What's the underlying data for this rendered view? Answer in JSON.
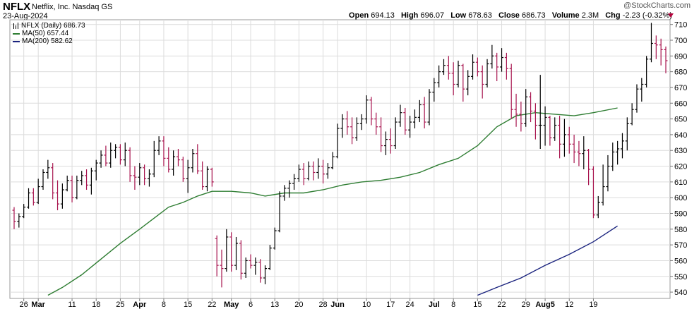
{
  "header": {
    "symbol": "NFLX",
    "company": "Netflix, Inc. Nasdaq GS",
    "date": "23-Aug-2024",
    "copyright": "@StockCharts.com",
    "quote": {
      "open_label": "Open",
      "open": "694.13",
      "high_label": "High",
      "high": "696.07",
      "low_label": "Low",
      "low": "678.63",
      "close_label": "Close",
      "close": "686.73",
      "volume_label": "Volume",
      "volume": "2.3M",
      "chg_label": "Chg",
      "chg": "-2.23 (-0.32%)"
    }
  },
  "legend": {
    "price": "NFLX (Daily) 686.73",
    "ma50": "MA(50) 657.44",
    "ma200": "MA(200) 582.62"
  },
  "colors": {
    "up": "#000000",
    "down": "#a8154f",
    "ma50": "#2e7d32",
    "ma200": "#1a237e",
    "grid": "#dcdcdc"
  },
  "chart_data": {
    "type": "line",
    "subtype": "ohlc-bars",
    "y_axis": {
      "position": "right",
      "ylim": [
        536,
        713
      ],
      "ticks": [
        540,
        550,
        560,
        570,
        580,
        590,
        600,
        610,
        620,
        630,
        640,
        650,
        660,
        670,
        680,
        690,
        700,
        710
      ]
    },
    "x_ticks": [
      {
        "label": "26",
        "bar": 2
      },
      {
        "label": "Mar",
        "bar": 5
      },
      {
        "label": "11",
        "bar": 12
      },
      {
        "label": "18",
        "bar": 17
      },
      {
        "label": "25",
        "bar": 22
      },
      {
        "label": "Apr",
        "bar": 26
      },
      {
        "label": "8",
        "bar": 31
      },
      {
        "label": "15",
        "bar": 36
      },
      {
        "label": "22",
        "bar": 41
      },
      {
        "label": "May",
        "bar": 45
      },
      {
        "label": "6",
        "bar": 49
      },
      {
        "label": "13",
        "bar": 54
      },
      {
        "label": "20",
        "bar": 59
      },
      {
        "label": "28",
        "bar": 64
      },
      {
        "label": "Jun",
        "bar": 67
      },
      {
        "label": "10",
        "bar": 73
      },
      {
        "label": "17",
        "bar": 78
      },
      {
        "label": "24",
        "bar": 82
      },
      {
        "label": "Jul",
        "bar": 87
      },
      {
        "label": "8",
        "bar": 91
      },
      {
        "label": "15",
        "bar": 96
      },
      {
        "label": "22",
        "bar": 101
      },
      {
        "label": "29",
        "bar": 106
      },
      {
        "label": "Aug5",
        "bar": 110
      },
      {
        "label": "12",
        "bar": 115
      },
      {
        "label": "19",
        "bar": 120
      }
    ],
    "bars": [
      {
        "o": 592,
        "h": 594,
        "l": 580,
        "c": 585
      },
      {
        "o": 585,
        "h": 590,
        "l": 581,
        "c": 588
      },
      {
        "o": 588,
        "h": 596,
        "l": 587,
        "c": 594
      },
      {
        "o": 594,
        "h": 606,
        "l": 593,
        "c": 603
      },
      {
        "o": 603,
        "h": 606,
        "l": 595,
        "c": 597
      },
      {
        "o": 597,
        "h": 612,
        "l": 596,
        "c": 607
      },
      {
        "o": 607,
        "h": 618,
        "l": 605,
        "c": 616
      },
      {
        "o": 616,
        "h": 624,
        "l": 612,
        "c": 619
      },
      {
        "o": 619,
        "h": 622,
        "l": 599,
        "c": 603
      },
      {
        "o": 603,
        "h": 611,
        "l": 592,
        "c": 596
      },
      {
        "o": 596,
        "h": 609,
        "l": 593,
        "c": 605
      },
      {
        "o": 605,
        "h": 614,
        "l": 604,
        "c": 611
      },
      {
        "o": 611,
        "h": 614,
        "l": 597,
        "c": 600
      },
      {
        "o": 600,
        "h": 614,
        "l": 599,
        "c": 611
      },
      {
        "o": 611,
        "h": 617,
        "l": 608,
        "c": 614
      },
      {
        "o": 614,
        "h": 618,
        "l": 605,
        "c": 608
      },
      {
        "o": 608,
        "h": 619,
        "l": 602,
        "c": 617
      },
      {
        "o": 617,
        "h": 624,
        "l": 611,
        "c": 622
      },
      {
        "o": 622,
        "h": 630,
        "l": 619,
        "c": 627
      },
      {
        "o": 627,
        "h": 633,
        "l": 620,
        "c": 622
      },
      {
        "o": 622,
        "h": 635,
        "l": 619,
        "c": 630
      },
      {
        "o": 630,
        "h": 634,
        "l": 625,
        "c": 632
      },
      {
        "o": 632,
        "h": 634,
        "l": 621,
        "c": 624
      },
      {
        "o": 624,
        "h": 635,
        "l": 620,
        "c": 630
      },
      {
        "o": 630,
        "h": 632,
        "l": 610,
        "c": 614
      },
      {
        "o": 614,
        "h": 620,
        "l": 605,
        "c": 613
      },
      {
        "o": 613,
        "h": 622,
        "l": 608,
        "c": 619
      },
      {
        "o": 619,
        "h": 621,
        "l": 608,
        "c": 612
      },
      {
        "o": 612,
        "h": 618,
        "l": 607,
        "c": 615
      },
      {
        "o": 615,
        "h": 636,
        "l": 613,
        "c": 630
      },
      {
        "o": 630,
        "h": 639,
        "l": 627,
        "c": 636
      },
      {
        "o": 636,
        "h": 639,
        "l": 620,
        "c": 625
      },
      {
        "o": 625,
        "h": 632,
        "l": 616,
        "c": 618
      },
      {
        "o": 618,
        "h": 630,
        "l": 614,
        "c": 626
      },
      {
        "o": 626,
        "h": 631,
        "l": 620,
        "c": 624
      },
      {
        "o": 624,
        "h": 626,
        "l": 610,
        "c": 612
      },
      {
        "o": 612,
        "h": 624,
        "l": 603,
        "c": 619
      },
      {
        "o": 619,
        "h": 631,
        "l": 616,
        "c": 628
      },
      {
        "o": 628,
        "h": 634,
        "l": 615,
        "c": 617
      },
      {
        "o": 617,
        "h": 623,
        "l": 605,
        "c": 607
      },
      {
        "o": 607,
        "h": 620,
        "l": 604,
        "c": 618
      },
      {
        "o": 618,
        "h": 619,
        "l": 607,
        "c": 610
      },
      {
        "o": 574,
        "h": 576,
        "l": 550,
        "c": 557
      },
      {
        "o": 557,
        "h": 567,
        "l": 543,
        "c": 555
      },
      {
        "o": 555,
        "h": 580,
        "l": 553,
        "c": 575
      },
      {
        "o": 575,
        "h": 578,
        "l": 553,
        "c": 557
      },
      {
        "o": 557,
        "h": 575,
        "l": 554,
        "c": 571
      },
      {
        "o": 571,
        "h": 573,
        "l": 548,
        "c": 552
      },
      {
        "o": 552,
        "h": 562,
        "l": 549,
        "c": 560
      },
      {
        "o": 560,
        "h": 564,
        "l": 555,
        "c": 557
      },
      {
        "o": 557,
        "h": 562,
        "l": 551,
        "c": 559
      },
      {
        "o": 559,
        "h": 561,
        "l": 546,
        "c": 549
      },
      {
        "o": 549,
        "h": 557,
        "l": 545,
        "c": 555
      },
      {
        "o": 555,
        "h": 570,
        "l": 554,
        "c": 568
      },
      {
        "o": 568,
        "h": 581,
        "l": 567,
        "c": 579
      },
      {
        "o": 579,
        "h": 604,
        "l": 578,
        "c": 601
      },
      {
        "o": 601,
        "h": 608,
        "l": 598,
        "c": 606
      },
      {
        "o": 606,
        "h": 611,
        "l": 600,
        "c": 609
      },
      {
        "o": 609,
        "h": 615,
        "l": 605,
        "c": 612
      },
      {
        "o": 612,
        "h": 621,
        "l": 610,
        "c": 618
      },
      {
        "o": 618,
        "h": 622,
        "l": 608,
        "c": 612
      },
      {
        "o": 612,
        "h": 623,
        "l": 611,
        "c": 620
      },
      {
        "o": 620,
        "h": 623,
        "l": 611,
        "c": 616
      },
      {
        "o": 616,
        "h": 625,
        "l": 612,
        "c": 620
      },
      {
        "o": 620,
        "h": 624,
        "l": 609,
        "c": 615
      },
      {
        "o": 615,
        "h": 622,
        "l": 612,
        "c": 619
      },
      {
        "o": 619,
        "h": 629,
        "l": 618,
        "c": 626
      },
      {
        "o": 626,
        "h": 647,
        "l": 625,
        "c": 644
      },
      {
        "o": 644,
        "h": 653,
        "l": 638,
        "c": 650
      },
      {
        "o": 650,
        "h": 655,
        "l": 640,
        "c": 645
      },
      {
        "o": 645,
        "h": 651,
        "l": 634,
        "c": 638
      },
      {
        "o": 638,
        "h": 651,
        "l": 636,
        "c": 647
      },
      {
        "o": 647,
        "h": 653,
        "l": 643,
        "c": 650
      },
      {
        "o": 650,
        "h": 665,
        "l": 647,
        "c": 662
      },
      {
        "o": 662,
        "h": 664,
        "l": 646,
        "c": 650
      },
      {
        "o": 650,
        "h": 654,
        "l": 640,
        "c": 645
      },
      {
        "o": 645,
        "h": 651,
        "l": 629,
        "c": 633
      },
      {
        "o": 633,
        "h": 642,
        "l": 627,
        "c": 637
      },
      {
        "o": 637,
        "h": 644,
        "l": 628,
        "c": 633
      },
      {
        "o": 633,
        "h": 651,
        "l": 631,
        "c": 648
      },
      {
        "o": 648,
        "h": 659,
        "l": 645,
        "c": 654
      },
      {
        "o": 654,
        "h": 657,
        "l": 640,
        "c": 643
      },
      {
        "o": 643,
        "h": 652,
        "l": 638,
        "c": 648
      },
      {
        "o": 648,
        "h": 656,
        "l": 644,
        "c": 651
      },
      {
        "o": 651,
        "h": 662,
        "l": 648,
        "c": 659
      },
      {
        "o": 659,
        "h": 664,
        "l": 644,
        "c": 648
      },
      {
        "o": 648,
        "h": 669,
        "l": 646,
        "c": 667
      },
      {
        "o": 667,
        "h": 676,
        "l": 661,
        "c": 673
      },
      {
        "o": 673,
        "h": 684,
        "l": 670,
        "c": 680
      },
      {
        "o": 680,
        "h": 688,
        "l": 678,
        "c": 684
      },
      {
        "o": 684,
        "h": 690,
        "l": 675,
        "c": 679
      },
      {
        "o": 679,
        "h": 686,
        "l": 665,
        "c": 672
      },
      {
        "o": 672,
        "h": 687,
        "l": 670,
        "c": 684
      },
      {
        "o": 684,
        "h": 685,
        "l": 661,
        "c": 669
      },
      {
        "o": 669,
        "h": 681,
        "l": 665,
        "c": 677
      },
      {
        "o": 677,
        "h": 691,
        "l": 675,
        "c": 686
      },
      {
        "o": 686,
        "h": 689,
        "l": 677,
        "c": 680
      },
      {
        "o": 680,
        "h": 684,
        "l": 663,
        "c": 672
      },
      {
        "o": 672,
        "h": 688,
        "l": 670,
        "c": 685
      },
      {
        "o": 685,
        "h": 697,
        "l": 682,
        "c": 690
      },
      {
        "o": 690,
        "h": 692,
        "l": 674,
        "c": 683
      },
      {
        "o": 683,
        "h": 695,
        "l": 680,
        "c": 689
      },
      {
        "o": 689,
        "h": 692,
        "l": 675,
        "c": 682
      },
      {
        "o": 682,
        "h": 685,
        "l": 650,
        "c": 656
      },
      {
        "o": 656,
        "h": 666,
        "l": 645,
        "c": 653
      },
      {
        "o": 653,
        "h": 661,
        "l": 642,
        "c": 647
      },
      {
        "o": 647,
        "h": 669,
        "l": 645,
        "c": 664
      },
      {
        "o": 664,
        "h": 667,
        "l": 648,
        "c": 655
      },
      {
        "o": 655,
        "h": 660,
        "l": 637,
        "c": 646
      },
      {
        "o": 646,
        "h": 678,
        "l": 631,
        "c": 646
      },
      {
        "o": 646,
        "h": 658,
        "l": 633,
        "c": 651
      },
      {
        "o": 651,
        "h": 652,
        "l": 633,
        "c": 638
      },
      {
        "o": 638,
        "h": 651,
        "l": 636,
        "c": 646
      },
      {
        "o": 646,
        "h": 652,
        "l": 625,
        "c": 634
      },
      {
        "o": 634,
        "h": 650,
        "l": 626,
        "c": 640
      },
      {
        "o": 640,
        "h": 645,
        "l": 628,
        "c": 634
      },
      {
        "o": 634,
        "h": 640,
        "l": 622,
        "c": 629
      },
      {
        "o": 629,
        "h": 636,
        "l": 620,
        "c": 628
      },
      {
        "o": 628,
        "h": 639,
        "l": 618,
        "c": 630
      },
      {
        "o": 630,
        "h": 631,
        "l": 608,
        "c": 618
      },
      {
        "o": 618,
        "h": 620,
        "l": 587,
        "c": 589
      },
      {
        "o": 589,
        "h": 601,
        "l": 587,
        "c": 597
      },
      {
        "o": 597,
        "h": 621,
        "l": 595,
        "c": 607
      },
      {
        "o": 607,
        "h": 627,
        "l": 604,
        "c": 620
      },
      {
        "o": 620,
        "h": 635,
        "l": 617,
        "c": 629
      },
      {
        "o": 629,
        "h": 636,
        "l": 621,
        "c": 631
      },
      {
        "o": 631,
        "h": 641,
        "l": 625,
        "c": 636
      },
      {
        "o": 636,
        "h": 651,
        "l": 630,
        "c": 647
      },
      {
        "o": 647,
        "h": 660,
        "l": 646,
        "c": 656
      },
      {
        "o": 656,
        "h": 672,
        "l": 654,
        "c": 669
      },
      {
        "o": 669,
        "h": 676,
        "l": 661,
        "c": 672
      },
      {
        "o": 672,
        "h": 690,
        "l": 670,
        "c": 688
      },
      {
        "o": 688,
        "h": 711,
        "l": 686,
        "c": 698
      },
      {
        "o": 698,
        "h": 703,
        "l": 688,
        "c": 697
      },
      {
        "o": 697,
        "h": 701,
        "l": 684,
        "c": 694
      },
      {
        "o": 694,
        "h": 696,
        "l": 679,
        "c": 687
      }
    ],
    "ma50": [
      {
        "bar": 7,
        "v": 538
      },
      {
        "bar": 10,
        "v": 543
      },
      {
        "bar": 14,
        "v": 551
      },
      {
        "bar": 18,
        "v": 561
      },
      {
        "bar": 22,
        "v": 571
      },
      {
        "bar": 26,
        "v": 580
      },
      {
        "bar": 29,
        "v": 587
      },
      {
        "bar": 32,
        "v": 594
      },
      {
        "bar": 35,
        "v": 597
      },
      {
        "bar": 38,
        "v": 601
      },
      {
        "bar": 41,
        "v": 604
      },
      {
        "bar": 45,
        "v": 604
      },
      {
        "bar": 49,
        "v": 603
      },
      {
        "bar": 52,
        "v": 601
      },
      {
        "bar": 56,
        "v": 603
      },
      {
        "bar": 60,
        "v": 603
      },
      {
        "bar": 64,
        "v": 605
      },
      {
        "bar": 68,
        "v": 608
      },
      {
        "bar": 72,
        "v": 610
      },
      {
        "bar": 76,
        "v": 611
      },
      {
        "bar": 80,
        "v": 613
      },
      {
        "bar": 84,
        "v": 616
      },
      {
        "bar": 88,
        "v": 621
      },
      {
        "bar": 92,
        "v": 625
      },
      {
        "bar": 96,
        "v": 633
      },
      {
        "bar": 100,
        "v": 645
      },
      {
        "bar": 104,
        "v": 652
      },
      {
        "bar": 108,
        "v": 654
      },
      {
        "bar": 112,
        "v": 653
      },
      {
        "bar": 116,
        "v": 652
      },
      {
        "bar": 120,
        "v": 654
      },
      {
        "bar": 125,
        "v": 657
      }
    ],
    "ma200": [
      {
        "bar": 96,
        "v": 538
      },
      {
        "bar": 100,
        "v": 543
      },
      {
        "bar": 105,
        "v": 549
      },
      {
        "bar": 110,
        "v": 557
      },
      {
        "bar": 115,
        "v": 564
      },
      {
        "bar": 120,
        "v": 572
      },
      {
        "bar": 125,
        "v": 582
      }
    ]
  }
}
